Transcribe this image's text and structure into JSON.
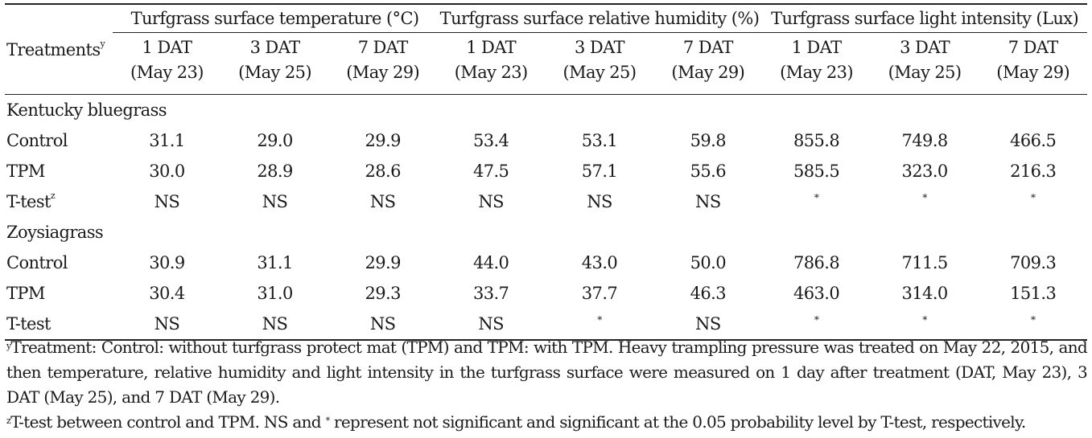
{
  "header": {
    "treatments_label": "Treatments",
    "treatments_sup": "y",
    "groups": [
      "Turfgrass surface temperature (°C)",
      "Turfgrass surface relative humidity (%)",
      "Turfgrass surface light intensity (Lux)"
    ],
    "days": [
      "1 DAT",
      "3 DAT",
      "7 DAT"
    ],
    "dates": [
      "(May 23)",
      "(May 25)",
      "(May 29)"
    ]
  },
  "sections": [
    {
      "species": "Kentucky bluegrass",
      "rows": [
        {
          "label": "Control",
          "values": [
            "31.1",
            "29.0",
            "29.9",
            "53.4",
            "53.1",
            "59.8",
            "855.8",
            "749.8",
            "466.5"
          ]
        },
        {
          "label": "TPM",
          "values": [
            "30.0",
            "28.9",
            "28.6",
            "47.5",
            "57.1",
            "55.6",
            "585.5",
            "323.0",
            "216.3"
          ]
        },
        {
          "label": "T-test",
          "label_sup": "z",
          "values": [
            "NS",
            "NS",
            "NS",
            "NS",
            "NS",
            "NS",
            "*",
            "*",
            "*"
          ]
        }
      ]
    },
    {
      "species": "Zoysiagrass",
      "rows": [
        {
          "label": "Control",
          "values": [
            "30.9",
            "31.1",
            "29.9",
            "44.0",
            "43.0",
            "50.0",
            "786.8",
            "711.5",
            "709.3"
          ]
        },
        {
          "label": "TPM",
          "values": [
            "30.4",
            "31.0",
            "29.3",
            "33.7",
            "37.7",
            "46.3",
            "463.0",
            "314.0",
            "151.3"
          ]
        },
        {
          "label": "T-test",
          "values": [
            "NS",
            "NS",
            "NS",
            "NS",
            "*",
            "NS",
            "*",
            "*",
            "*"
          ]
        }
      ]
    }
  ],
  "footnotes": {
    "y_marker": "y",
    "y_text": "Treatment: Control: without turfgrass protect mat (TPM) and TPM: with TPM. Heavy trampling pressure was treated on May 22, 2015, and then temperature, relative humidity and light intensity in the turfgrass surface were measured on 1 day after treatment (DAT, May 23), 3 DAT (May 25), and 7 DAT (May 29).",
    "z_marker": "z",
    "z_text_1": "T-test between control and TPM. NS and ",
    "z_star": "*",
    "z_text_2": " represent not significant and significant at the 0.05 probability level by T-test, respectively."
  }
}
